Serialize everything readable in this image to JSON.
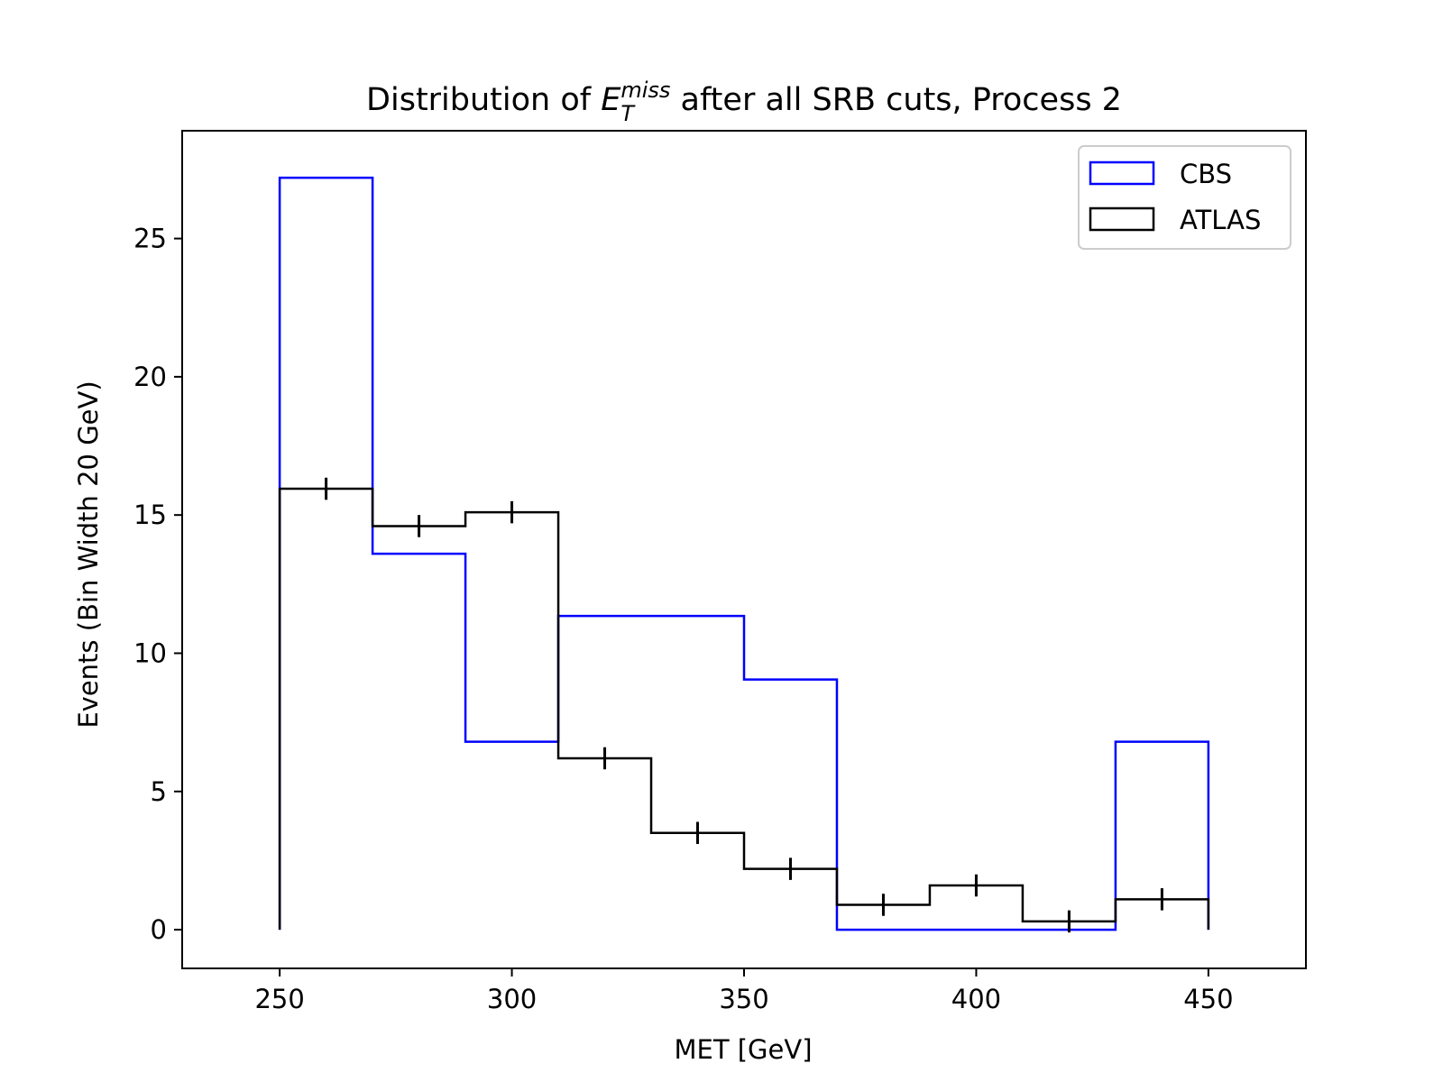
{
  "chart_data": {
    "type": "histogram",
    "title": "Distribution of",
    "title_symbol": "E",
    "title_sub": "T",
    "title_sup": "miss",
    "title_rest": " after all SRB cuts, Process 2",
    "xlabel": "MET [GeV]",
    "ylabel": "Events (Bin Width 20 GeV)",
    "xlim": [
      229,
      471
    ],
    "ylim": [
      -1.4,
      28.9
    ],
    "xticks": [
      250,
      300,
      350,
      400,
      450
    ],
    "yticks": [
      0,
      5,
      10,
      15,
      20,
      25
    ],
    "bin_edges": [
      250,
      270,
      290,
      310,
      330,
      350,
      370,
      390,
      410,
      430,
      450
    ],
    "series": [
      {
        "name": "CBS",
        "color": "#0000ff",
        "values": [
          27.2,
          13.6,
          6.8,
          11.35,
          11.35,
          9.05,
          0,
          0,
          0,
          6.8
        ]
      },
      {
        "name": "ATLAS",
        "color": "#000000",
        "values": [
          15.95,
          14.6,
          15.1,
          6.2,
          3.5,
          2.2,
          0.9,
          1.6,
          0.3,
          1.1
        ],
        "errors": [
          0.4,
          0.4,
          0.4,
          0.4,
          0.4,
          0.4,
          0.4,
          0.4,
          0.4,
          0.4
        ]
      }
    ],
    "legend_position": "top-right",
    "grid": false
  }
}
